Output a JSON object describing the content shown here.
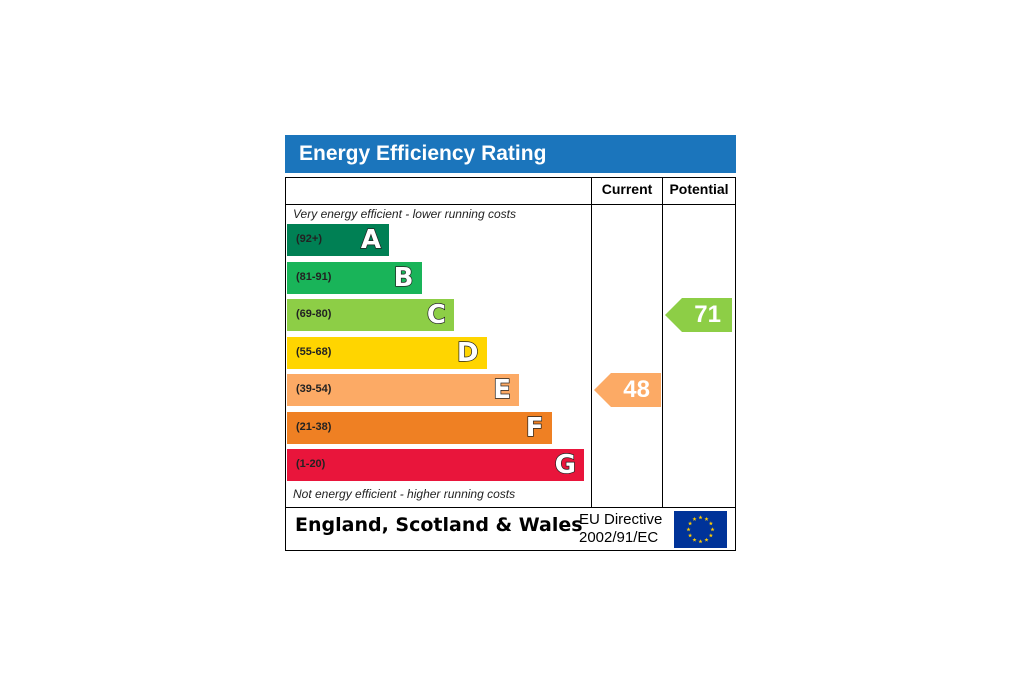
{
  "title": "Energy Efficiency Rating",
  "columns": {
    "current": "Current",
    "potential": "Potential"
  },
  "notes": {
    "top": "Very energy efficient - lower running costs",
    "bottom": "Not energy efficient - higher running costs"
  },
  "footer": {
    "country": "England, Scotland & Wales",
    "directive_line1": "EU Directive",
    "directive_line2": "2002/91/EC",
    "flag_icon": "eu-flag-icon"
  },
  "chart_data": {
    "type": "bar",
    "title": "Energy Efficiency Rating",
    "categories": [
      "A",
      "B",
      "C",
      "D",
      "E",
      "F",
      "G"
    ],
    "bands": [
      {
        "letter": "A",
        "range": "(92+)",
        "min": 92,
        "max": 100,
        "color": "#008054"
      },
      {
        "letter": "B",
        "range": "(81-91)",
        "min": 81,
        "max": 91,
        "color": "#19b459"
      },
      {
        "letter": "C",
        "range": "(69-80)",
        "min": 69,
        "max": 80,
        "color": "#8dce46"
      },
      {
        "letter": "D",
        "range": "(55-68)",
        "min": 55,
        "max": 68,
        "color": "#ffd500"
      },
      {
        "letter": "E",
        "range": "(39-54)",
        "min": 39,
        "max": 54,
        "color": "#fcaa65"
      },
      {
        "letter": "F",
        "range": "(21-38)",
        "min": 21,
        "max": 38,
        "color": "#ef8023"
      },
      {
        "letter": "G",
        "range": "(1-20)",
        "min": 1,
        "max": 20,
        "color": "#e9153b"
      }
    ],
    "series": [
      {
        "name": "Current",
        "value": 48,
        "band": "E",
        "color": "#fcaa65"
      },
      {
        "name": "Potential",
        "value": 71,
        "band": "C",
        "color": "#8dce46"
      }
    ]
  }
}
